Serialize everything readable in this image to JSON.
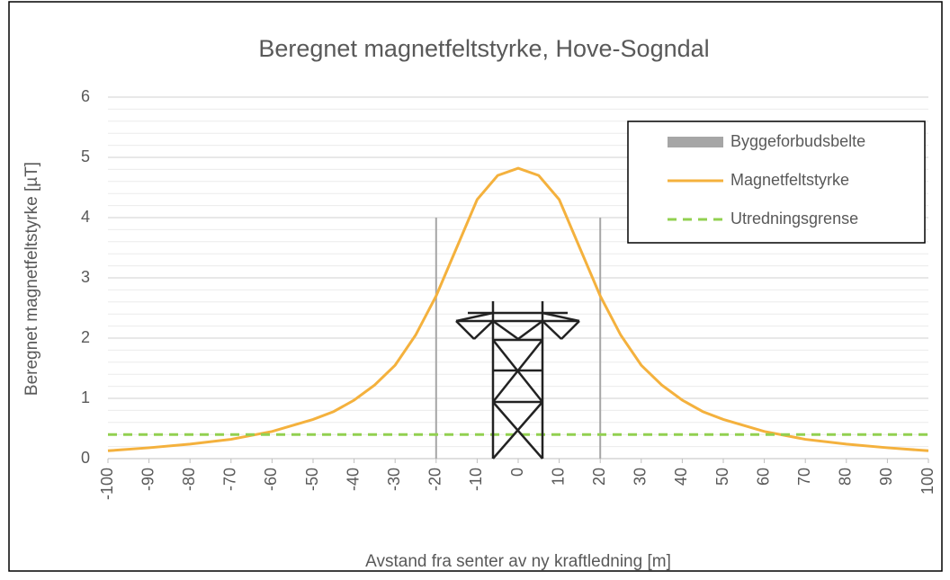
{
  "chart_data": {
    "type": "line",
    "title": "Beregnet magnetfeltstyrke, Hove-Sogndal",
    "x_label": "Avstand fra senter av ny kraftledning [m]",
    "y_label": "Beregnet magnetfeltstyrke [µT]",
    "xlim": [
      -100,
      100
    ],
    "xticks": [
      -100,
      -90,
      -80,
      -70,
      -60,
      -50,
      -40,
      -30,
      -20,
      -10,
      0,
      10,
      20,
      30,
      40,
      50,
      60,
      70,
      80,
      90,
      100
    ],
    "ylim": [
      0,
      6
    ],
    "yticks": [
      0,
      1,
      2,
      3,
      4,
      5,
      6
    ],
    "minor_yticks": [
      0.2,
      0.4,
      0.6,
      0.8,
      1.2,
      1.4,
      1.6,
      1.8,
      2.2,
      2.4,
      2.6,
      2.8,
      3.2,
      3.4,
      3.6,
      3.8,
      4.2,
      4.4,
      4.6,
      4.8,
      5.2,
      5.4,
      5.6,
      5.8
    ],
    "grid": true,
    "legend": "upper right",
    "series": [
      {
        "name": "Byggeforbudsbelte",
        "color": "#a6a6a6",
        "style": "vertical",
        "x": [
          -20,
          20
        ],
        "values": [
          4,
          4
        ]
      },
      {
        "name": "Magnetfeltstyrke",
        "color": "#f4b13d",
        "style": "solid",
        "x": [
          -100,
          -90,
          -80,
          -70,
          -60,
          -50,
          -45,
          -40,
          -35,
          -30,
          -25,
          -20,
          -15,
          -10,
          -5,
          0,
          5,
          10,
          15,
          20,
          25,
          30,
          35,
          40,
          45,
          50,
          60,
          70,
          80,
          90,
          100
        ],
        "values": [
          0.13,
          0.18,
          0.24,
          0.32,
          0.45,
          0.65,
          0.78,
          0.97,
          1.22,
          1.55,
          2.05,
          2.7,
          3.5,
          4.3,
          4.7,
          4.82,
          4.7,
          4.3,
          3.5,
          2.7,
          2.05,
          1.55,
          1.22,
          0.97,
          0.78,
          0.65,
          0.45,
          0.32,
          0.24,
          0.18,
          0.13
        ]
      },
      {
        "name": "Utredningsgrense",
        "color": "#92d050",
        "style": "dashed",
        "x": [
          -100,
          100
        ],
        "values": [
          0.4,
          0.4
        ]
      }
    ]
  }
}
